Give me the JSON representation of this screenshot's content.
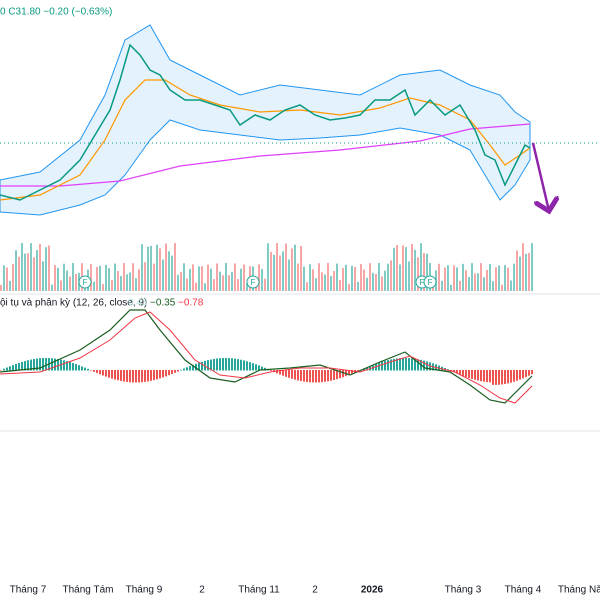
{
  "header": {
    "ohlc": "0  C31.80  −0.20 (−0.63%)"
  },
  "macd": {
    "title": "ội tụ và phân kỳ (12, 26, close, 9)",
    "histogram": "0.43",
    "macd": "−0.35",
    "signal": "−0.78"
  },
  "markers": [
    "F",
    "F",
    "F",
    "F"
  ],
  "time_axis": [
    "Tháng 7",
    "Tháng Tám",
    "Tháng 9",
    "2",
    "Tháng 11",
    "2",
    "2026",
    "Tháng 3",
    "Tháng 4",
    "Tháng Năm"
  ]
}
